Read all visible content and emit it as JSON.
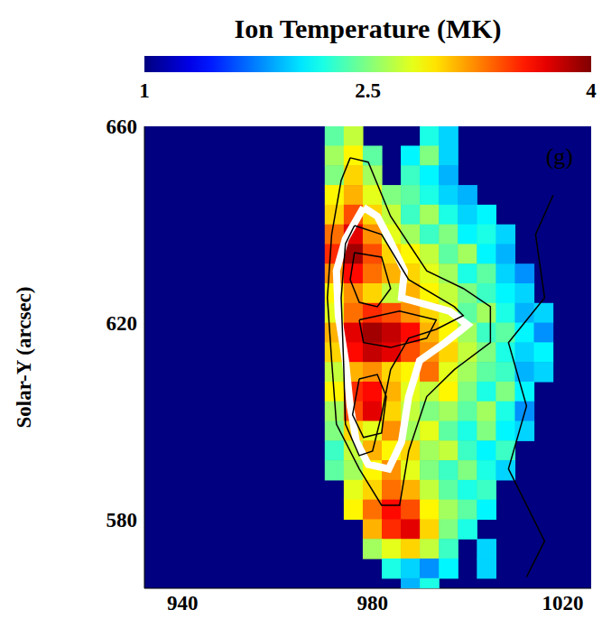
{
  "chart_data": {
    "type": "heatmap",
    "y_label": "Solar-Y (arcsec)",
    "annotations": [
      "(g)"
    ],
    "xlim": [
      932,
      1026
    ],
    "xticks": [
      940,
      980,
      1020
    ],
    "ylim": [
      566,
      660
    ],
    "yticks": [
      580,
      620,
      660
    ],
    "colorbar": {
      "label": "Ion Temperature (MK)",
      "range": [
        1,
        4
      ],
      "ticks": [
        1,
        2.5,
        4
      ]
    },
    "cells": {
      "x": [
        972,
        976,
        980,
        984,
        988,
        992,
        996,
        1000,
        1004,
        1008,
        1012,
        1016
      ],
      "y": [
        658,
        654,
        650,
        646,
        642,
        638,
        634,
        630,
        626,
        622,
        618,
        614,
        610,
        606,
        602,
        598,
        594,
        590,
        586,
        582,
        578,
        574,
        570,
        566
      ],
      "values": [
        [
          2.4,
          2.7,
          null,
          null,
          null,
          2.2,
          2.0,
          null,
          null,
          null,
          null,
          null
        ],
        [
          2.6,
          2.9,
          2.4,
          null,
          2.1,
          2.5,
          2.0,
          null,
          null,
          null,
          null,
          null
        ],
        [
          2.5,
          3.0,
          2.6,
          null,
          2.3,
          2.1,
          1.9,
          null,
          null,
          null,
          null,
          null
        ],
        [
          2.9,
          3.1,
          2.8,
          2.5,
          2.4,
          2.2,
          2.0,
          1.9,
          null,
          null,
          null,
          null
        ],
        [
          3.0,
          3.4,
          3.0,
          2.7,
          2.3,
          2.6,
          2.2,
          2.0,
          2.1,
          null,
          null,
          null
        ],
        [
          3.3,
          3.7,
          3.2,
          2.8,
          2.6,
          2.3,
          2.5,
          2.1,
          2.2,
          2.0,
          null,
          null
        ],
        [
          3.5,
          3.9,
          3.4,
          3.0,
          2.9,
          2.7,
          2.4,
          2.6,
          2.1,
          1.9,
          null,
          null
        ],
        [
          3.2,
          3.6,
          3.3,
          3.1,
          3.0,
          2.8,
          2.6,
          2.2,
          2.4,
          2.0,
          1.8,
          null
        ],
        [
          2.9,
          3.2,
          3.0,
          2.7,
          3.1,
          2.9,
          2.7,
          2.5,
          2.3,
          2.1,
          2.0,
          null
        ],
        [
          2.8,
          3.3,
          3.5,
          3.4,
          3.2,
          3.0,
          2.8,
          2.4,
          2.6,
          2.2,
          1.9,
          2.0
        ],
        [
          3.1,
          3.7,
          3.9,
          3.8,
          3.6,
          3.1,
          2.9,
          2.6,
          2.3,
          2.4,
          2.1,
          1.8
        ],
        [
          3.0,
          3.6,
          3.8,
          3.7,
          3.4,
          3.2,
          3.0,
          2.7,
          2.5,
          2.2,
          2.0,
          2.1
        ],
        [
          2.7,
          3.1,
          3.2,
          3.0,
          2.9,
          3.3,
          2.8,
          2.6,
          2.4,
          2.3,
          1.9,
          2.0
        ],
        [
          2.9,
          3.5,
          3.6,
          3.1,
          2.8,
          2.7,
          2.9,
          2.5,
          2.2,
          2.5,
          2.1,
          null
        ],
        [
          2.6,
          3.4,
          3.7,
          3.0,
          2.7,
          2.5,
          2.6,
          2.4,
          2.6,
          2.2,
          1.8,
          null
        ],
        [
          2.5,
          3.0,
          2.8,
          3.2,
          2.6,
          2.8,
          2.4,
          2.2,
          2.5,
          2.1,
          2.0,
          null
        ],
        [
          2.3,
          2.7,
          3.1,
          2.9,
          3.0,
          2.6,
          2.7,
          2.3,
          2.1,
          2.3,
          null,
          null
        ],
        [
          2.4,
          2.6,
          2.9,
          3.2,
          2.8,
          2.5,
          2.3,
          2.5,
          2.2,
          2.0,
          null,
          null
        ],
        [
          null,
          2.8,
          3.0,
          3.3,
          3.1,
          2.7,
          2.4,
          2.2,
          2.3,
          null,
          null,
          null
        ],
        [
          null,
          2.9,
          3.3,
          3.6,
          3.4,
          2.9,
          2.6,
          2.4,
          2.1,
          null,
          null,
          null
        ],
        [
          null,
          null,
          3.1,
          3.5,
          3.7,
          3.0,
          2.5,
          2.2,
          null,
          null,
          null,
          null
        ],
        [
          null,
          null,
          2.6,
          2.8,
          3.0,
          2.7,
          2.3,
          null,
          2.0,
          null,
          null,
          null
        ],
        [
          null,
          null,
          null,
          2.2,
          2.0,
          1.8,
          2.1,
          null,
          2.0,
          null,
          null,
          null
        ],
        [
          null,
          null,
          null,
          null,
          1.9,
          2.2,
          null,
          null,
          null,
          null,
          null,
          null
        ]
      ]
    },
    "contours": [
      {
        "color": "#ffffff",
        "x": [
          978.1,
          974.3,
          972.4,
          972.8,
          974.3,
          975.3,
          976.6,
          979.1,
          983.4,
          986.1,
          987.6,
          989.9,
          995.3,
          1000.0,
          996.2,
          989.5,
          986.1,
          986.7,
          983.8,
          981.0,
          978.1
        ],
        "y": [
          643.5,
          637.1,
          630.6,
          621.5,
          612.3,
          603.1,
          595.8,
          591.2,
          590.3,
          595.8,
          605.0,
          612.3,
          616.0,
          619.6,
          622.4,
          624.2,
          625.1,
          630.6,
          636.5,
          641.7,
          643.5
        ]
      },
      {
        "color": "#000000",
        "x": [
          975.3,
          979.1,
          983.8,
          991.4,
          999.1,
          1004.8,
          1004.8,
          997.2,
          991.4,
          987.6,
          985.7,
          981.9,
          977.2,
          972.4,
          971.4,
          970.5,
          971.4,
          973.4,
          975.3
        ],
        "y": [
          653.6,
          652.7,
          641.7,
          630.6,
          627.0,
          623.3,
          616.0,
          610.5,
          605.0,
          593.9,
          582.9,
          582.9,
          590.3,
          599.4,
          612.3,
          625.1,
          638.0,
          649.0,
          653.6
        ]
      },
      {
        "color": "#000000",
        "x": [
          976.2,
          981.9,
          987.6,
          997.2,
          999.1,
          993.4,
          987.6,
          983.8,
          981.9,
          980.0,
          977.2,
          974.3,
          973.9,
          973.4,
          974.3,
          976.2
        ],
        "y": [
          639.8,
          638.0,
          628.8,
          623.3,
          621.5,
          618.7,
          616.9,
          610.5,
          601.3,
          593.9,
          593.0,
          599.4,
          612.3,
          625.1,
          636.1,
          639.8
        ]
      },
      {
        "color": "#000000",
        "x": [
          977.2,
          981.0,
          982.9,
          981.9,
          978.1,
          975.8,
          977.2
        ],
        "y": [
          608.6,
          609.5,
          605.0,
          597.6,
          596.7,
          601.3,
          608.6
        ]
      },
      {
        "color": "#000000",
        "x": [
          976.2,
          981.9,
          983.8,
          981.0,
          977.2,
          975.3,
          976.2
        ],
        "y": [
          634.3,
          633.4,
          627.0,
          623.3,
          624.2,
          628.8,
          634.3
        ]
      },
      {
        "color": "#000000",
        "x": [
          977.2,
          985.7,
          993.4,
          991.4,
          983.8,
          978.1,
          977.2
        ],
        "y": [
          620.6,
          622.4,
          620.6,
          616.9,
          615.0,
          616.0,
          620.6
        ]
      },
      {
        "color": "#000000",
        "x": [
          1018.0,
          1014.3,
          1016.2,
          1008.6,
          1012.4,
          1008.6,
          1016.2,
          1012.4
        ],
        "y": [
          646.0,
          638.0,
          625.1,
          616.0,
          603.1,
          590.3,
          575.6,
          568.3
        ]
      }
    ]
  }
}
